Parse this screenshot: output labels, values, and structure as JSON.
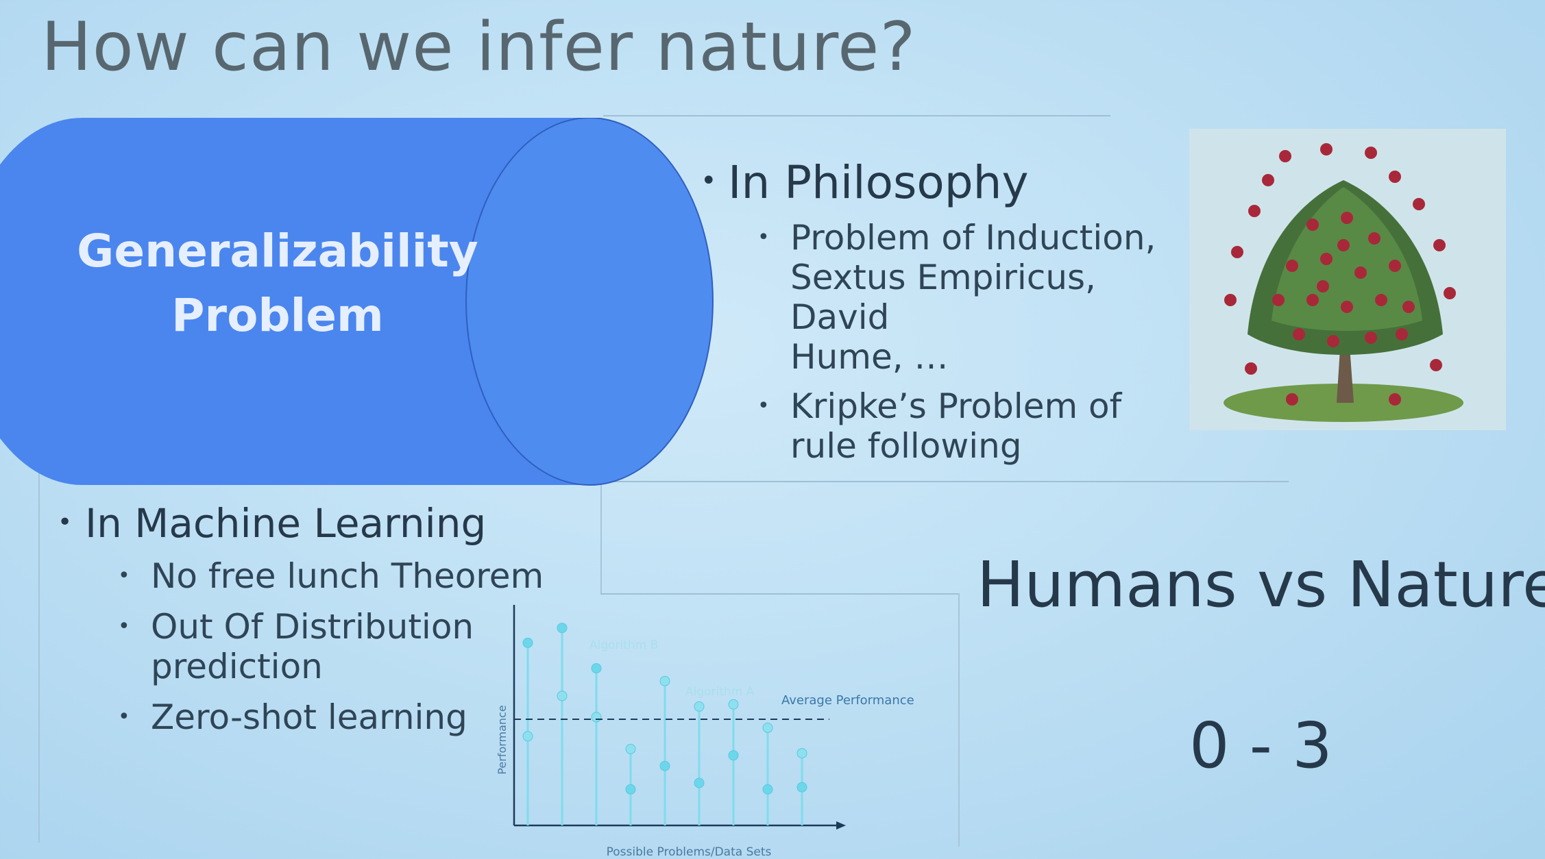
{
  "slide": {
    "title": "How can we infer nature?",
    "cylinder_label_line1": "Generalizability",
    "cylinder_label_line2": "Problem",
    "colors": {
      "cylinder": "#4a86ee",
      "background": "#c4e4f6",
      "text": "#26394a"
    }
  },
  "philosophy": {
    "heading": "In Philosophy",
    "items": [
      {
        "lines": [
          "Problem of Induction,",
          "Sextus Empiricus, David",
          "Hume, …"
        ]
      },
      {
        "lines": [
          "Kripke’s Problem of",
          "rule following"
        ]
      }
    ],
    "image_icon": "apple-tree-illustration-icon"
  },
  "machine_learning": {
    "heading": "In Machine Learning",
    "items": [
      {
        "lines": [
          "No free lunch Theorem"
        ]
      },
      {
        "lines": [
          "Out Of Distribution",
          "prediction"
        ]
      },
      {
        "lines": [
          "Zero-shot learning"
        ]
      }
    ]
  },
  "scoreboard": {
    "heading": "Humans vs Nature",
    "score": "0 - 3"
  },
  "chart_data": {
    "type": "scatter",
    "title": "",
    "xlabel": "Possible Problems/Data Sets",
    "ylabel": "Performance",
    "annotations": [
      "Algorithm B",
      "Algorithm A",
      "Average Performance"
    ],
    "average": 0.5,
    "ylim": [
      0,
      1
    ],
    "x": [
      1,
      2,
      3,
      4,
      5,
      6,
      7,
      8,
      9
    ],
    "series": [
      {
        "name": "Algorithm B",
        "values": [
          0.42,
          0.61,
          0.51,
          0.36,
          0.68,
          0.56,
          0.57,
          0.46,
          0.34
        ]
      },
      {
        "name": "Algorithm A",
        "values": [
          0.86,
          0.93,
          0.74,
          0.17,
          0.28,
          0.2,
          0.33,
          0.17,
          0.18
        ]
      }
    ]
  }
}
